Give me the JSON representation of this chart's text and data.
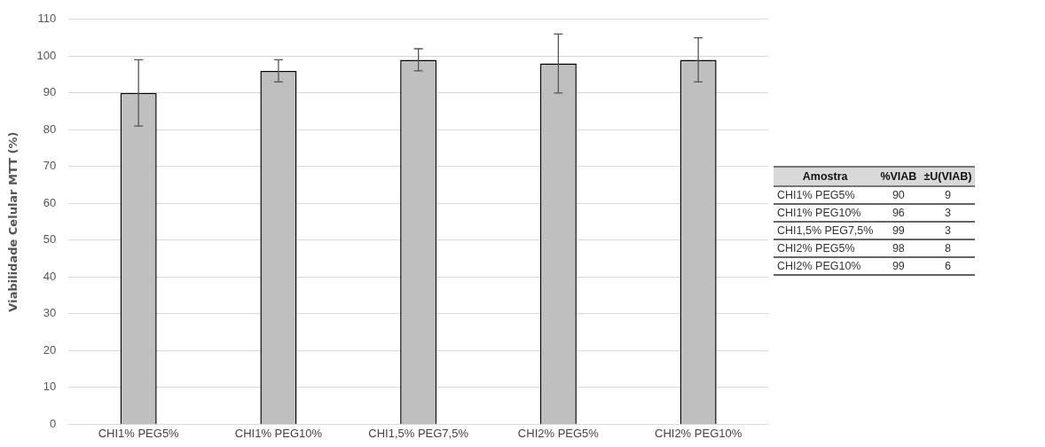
{
  "chart_data": [
    {
      "type": "bar",
      "ylabel": "Viabilidade Celular MTT (%)",
      "categories": [
        "CHI1% PEG5%",
        "CHI1% PEG10%",
        "CHI1,5% PEG7,5%",
        "CHI2% PEG5%",
        "CHI2% PEG10%"
      ],
      "values": [
        90,
        96,
        99,
        98,
        99
      ],
      "errors": [
        9,
        3,
        3,
        8,
        6
      ],
      "color": "#bfbfbf",
      "ylim": [
        0,
        110
      ],
      "yticks": [
        0,
        10,
        20,
        30,
        40,
        50,
        60,
        70,
        80,
        90,
        100,
        110
      ],
      "grid": "y",
      "legend": false
    },
    {
      "type": "other",
      "annotations": [
        "Amostra",
        "%VIAB",
        "±U(VIAB)",
        "CHI1% PEG5%",
        "90",
        "9",
        "CHI1% PEG10%",
        "96",
        "3",
        "CHI1,5% PEG7,5%",
        "99",
        "3",
        "CHI2% PEG5%",
        "98",
        "8",
        "CHI2% PEG10%",
        "99",
        "6"
      ]
    }
  ]
}
